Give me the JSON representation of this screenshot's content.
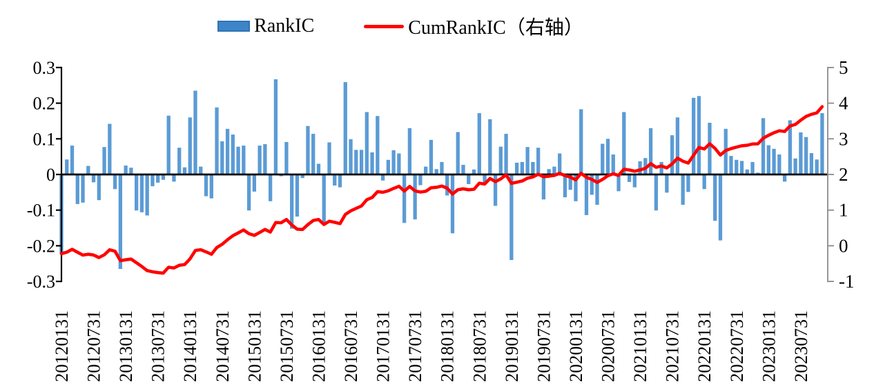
{
  "legend": {
    "rankic_label": "RankIC",
    "cum_label": "CumRankIC（右轴）"
  },
  "colors": {
    "bar": "#5b9bd5",
    "bar_swatch_border": "#2e74b5",
    "line": "#ff0000",
    "zero_line": "#000000",
    "left_axis": "#000000",
    "right_axis": "#8a8a8a",
    "text": "#000000"
  },
  "chart_data": {
    "type": "bar",
    "title": "",
    "xlabel": "",
    "ylabel": "",
    "legend_position": "top-center",
    "grid": false,
    "left_axis": {
      "tick_labels": [
        "0.3",
        "0.2",
        "0.1",
        "0",
        "-0.1",
        "-0.2",
        "-0.3"
      ],
      "range": [
        -0.3,
        0.3
      ]
    },
    "right_axis": {
      "tick_labels": [
        "5",
        "4",
        "3",
        "2",
        "1",
        "0",
        "-1"
      ],
      "range": [
        -1,
        5
      ]
    },
    "x_tick_labels": [
      "20120131",
      "20120731",
      "20130131",
      "20130731",
      "20140131",
      "20140731",
      "20150131",
      "20150731",
      "20160131",
      "20160731",
      "20170131",
      "20170731",
      "20180131",
      "20180731",
      "20190131",
      "20190731",
      "20200131",
      "20200731",
      "20210131",
      "20210731",
      "20220131",
      "20220731",
      "20230131",
      "20230731"
    ],
    "x_tick_every_n_months": 6,
    "series": [
      {
        "name": "RankIC",
        "type": "bar",
        "axis": "left",
        "start_date": "20120131",
        "frequency": "monthly",
        "values": [
          -0.222,
          0.042,
          0.081,
          -0.083,
          -0.079,
          0.024,
          -0.022,
          -0.072,
          0.077,
          0.142,
          -0.041,
          -0.265,
          0.025,
          0.019,
          -0.101,
          -0.106,
          -0.115,
          -0.033,
          -0.023,
          -0.015,
          0.165,
          -0.02,
          0.075,
          0.02,
          0.16,
          0.235,
          0.022,
          -0.061,
          -0.067,
          0.188,
          0.093,
          0.128,
          0.112,
          0.078,
          0.081,
          -0.101,
          -0.048,
          0.081,
          0.085,
          -0.075,
          0.267,
          -0.005,
          0.091,
          -0.152,
          -0.118,
          -0.01,
          0.136,
          0.114,
          0.03,
          -0.139,
          0.09,
          -0.031,
          -0.036,
          0.259,
          0.099,
          0.069,
          0.069,
          0.175,
          0.062,
          0.164,
          -0.017,
          0.041,
          0.068,
          0.059,
          -0.136,
          0.13,
          -0.126,
          -0.03,
          0.022,
          0.097,
          0.015,
          0.035,
          -0.059,
          -0.165,
          0.119,
          0.027,
          -0.027,
          0.014,
          0.172,
          -0.025,
          0.155,
          -0.088,
          0.078,
          0.114,
          -0.24,
          0.033,
          0.035,
          0.077,
          0.035,
          0.075,
          -0.07,
          0.015,
          0.022,
          0.059,
          -0.064,
          -0.043,
          -0.075,
          0.183,
          -0.114,
          -0.057,
          -0.085,
          0.086,
          0.1,
          0.056,
          -0.047,
          0.175,
          -0.021,
          -0.036,
          0.037,
          0.046,
          0.13,
          -0.101,
          0.035,
          -0.051,
          0.11,
          0.16,
          -0.085,
          -0.049,
          0.215,
          0.22,
          -0.041,
          0.145,
          -0.13,
          -0.185,
          0.128,
          0.052,
          0.041,
          0.038,
          0.014,
          0.035,
          0.005,
          0.158,
          0.082,
          0.072,
          0.056,
          -0.02,
          0.152,
          0.045,
          0.118,
          0.105,
          0.06,
          0.042,
          0.172
        ]
      },
      {
        "name": "CumRankIC（右轴）",
        "type": "line",
        "axis": "right",
        "derivation": "cumulative sum of RankIC monthly values",
        "start_value": -0.222,
        "end_value": 4.0
      }
    ]
  }
}
